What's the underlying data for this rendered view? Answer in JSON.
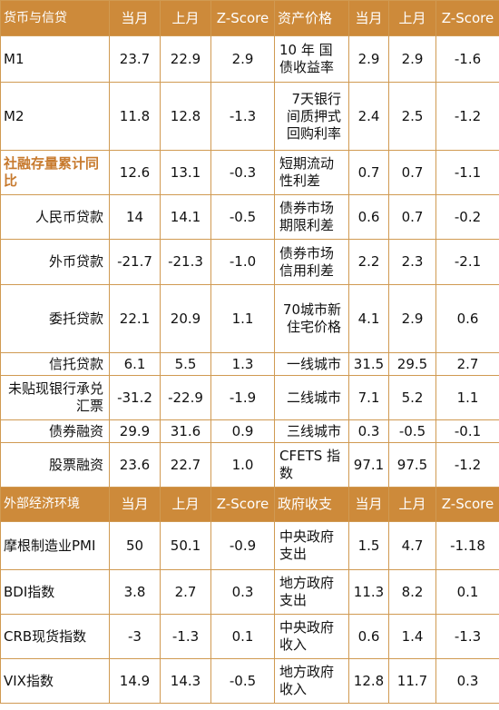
{
  "top_header": [
    "货币与信贷",
    "当月",
    "上月",
    "Z-Score",
    "资产价格",
    "当月",
    "上月",
    "Z-Score"
  ],
  "top_rows": [
    {
      "l": "M1",
      "a": "23.7",
      "b": "22.9",
      "z": "2.9",
      "m": "10 年 国债收益率",
      "c": "2.9",
      "d": "2.9",
      "e": "-1.6"
    },
    {
      "l": "M2",
      "a": "11.8",
      "b": "12.8",
      "z": "-1.3",
      "m": "7天银行间质押式回购利率",
      "c": "2.4",
      "d": "2.5",
      "e": "-1.2"
    },
    {
      "l": "社融存量累计同比",
      "a": "12.6",
      "b": "13.1",
      "z": "-0.3",
      "m": "短期流动性利差",
      "c": "0.7",
      "d": "0.7",
      "e": "-1.1"
    },
    {
      "l": "人民币贷款",
      "a": "14",
      "b": "14.1",
      "z": "-0.5",
      "m": "债券市场期限利差",
      "c": "0.6",
      "d": "0.7",
      "e": "-0.2"
    },
    {
      "l": "外币贷款",
      "a": "-21.7",
      "b": "-21.3",
      "z": "-1.0",
      "m": "债券市场信用利差",
      "c": "2.2",
      "d": "2.3",
      "e": "-2.1"
    },
    {
      "l": "委托贷款",
      "a": "22.1",
      "b": "20.9",
      "z": "1.1",
      "m": "70城市新住宅价格",
      "c": "4.1",
      "d": "2.9",
      "e": "0.6"
    },
    {
      "l": "信托贷款",
      "a": "6.1",
      "b": "5.5",
      "z": "1.3",
      "m": "一线城市",
      "c": "31.5",
      "d": "29.5",
      "e": "2.7"
    },
    {
      "l": "未贴现银行承兑汇票",
      "a": "-31.2",
      "b": "-22.9",
      "z": "-1.9",
      "m": "二线城市",
      "c": "7.1",
      "d": "5.2",
      "e": "1.1"
    },
    {
      "l": "债券融资",
      "a": "29.9",
      "b": "31.6",
      "z": "0.9",
      "m": "三线城市",
      "c": "0.3",
      "d": "-0.5",
      "e": "-0.1"
    },
    {
      "l": "股票融资",
      "a": "23.6",
      "b": "22.7",
      "z": "1.0",
      "m": "CFETS 指数",
      "c": "97.1",
      "d": "97.5",
      "e": "-1.2"
    }
  ],
  "bottom_header": [
    "外部经济环境",
    "当月",
    "上月",
    "Z-Score",
    "政府收支",
    "当月",
    "上月",
    "Z-Score"
  ],
  "bottom_rows": [
    {
      "l": "摩根制造业PMI",
      "a": "50",
      "b": "50.1",
      "z": "-0.9",
      "m": "中央政府支出",
      "c": "1.5",
      "d": "4.7",
      "e": "-1.18"
    },
    {
      "l": "BDI指数",
      "a": "3.8",
      "b": "2.7",
      "z": "0.3",
      "m": "地方政府支出",
      "c": "11.3",
      "d": "8.2",
      "e": "0.1"
    },
    {
      "l": "CRB现货指数",
      "a": "-3",
      "b": "-1.3",
      "z": "0.1",
      "m": "中央政府收入",
      "c": "0.6",
      "d": "1.4",
      "e": "-1.3"
    },
    {
      "l": "VIX指数",
      "a": "14.9",
      "b": "14.3",
      "z": "-0.5",
      "m": "地方政府收入",
      "c": "12.8",
      "d": "11.7",
      "e": "0.3"
    }
  ]
}
